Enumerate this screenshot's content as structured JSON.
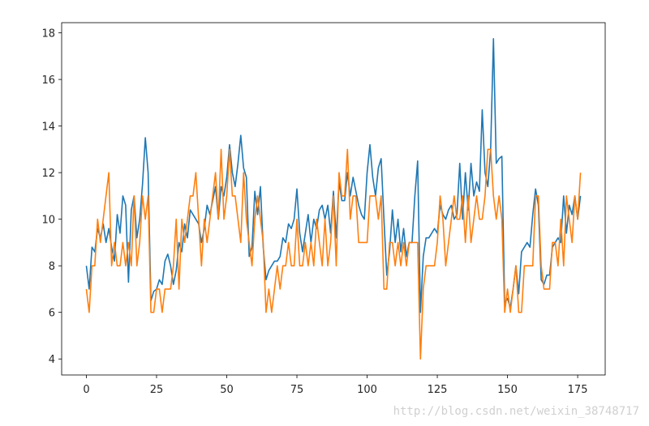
{
  "chart_data": {
    "type": "line",
    "x": [
      0,
      1,
      2,
      3,
      4,
      5,
      6,
      7,
      8,
      9,
      10,
      11,
      12,
      13,
      14,
      15,
      16,
      17,
      18,
      19,
      20,
      21,
      22,
      23,
      24,
      25,
      26,
      27,
      28,
      29,
      30,
      31,
      32,
      33,
      34,
      35,
      36,
      37,
      38,
      39,
      40,
      41,
      42,
      43,
      44,
      45,
      46,
      47,
      48,
      49,
      50,
      51,
      52,
      53,
      54,
      55,
      56,
      57,
      58,
      59,
      60,
      61,
      62,
      63,
      64,
      65,
      66,
      67,
      68,
      69,
      70,
      71,
      72,
      73,
      74,
      75,
      76,
      77,
      78,
      79,
      80,
      81,
      82,
      83,
      84,
      85,
      86,
      87,
      88,
      89,
      90,
      91,
      92,
      93,
      94,
      95,
      96,
      97,
      98,
      99,
      100,
      101,
      102,
      103,
      104,
      105,
      106,
      107,
      108,
      109,
      110,
      111,
      112,
      113,
      114,
      115,
      116,
      117,
      118,
      119,
      120,
      121,
      122,
      123,
      124,
      125,
      126,
      127,
      128,
      129,
      130,
      131,
      132,
      133,
      134,
      135,
      136,
      137,
      138,
      139,
      140,
      141,
      142,
      143,
      144,
      145,
      146,
      147,
      148,
      149,
      150,
      151,
      152,
      153,
      154,
      155,
      156,
      157,
      158,
      159,
      160,
      161,
      162,
      163,
      164,
      165,
      166,
      167,
      168,
      169,
      170,
      171,
      172,
      173,
      174,
      175,
      176
    ],
    "series": [
      {
        "color": "#1f77b4",
        "values": [
          8.0,
          7.0,
          8.8,
          8.6,
          9.6,
          9.2,
          9.8,
          9.0,
          9.6,
          8.8,
          8.2,
          10.2,
          9.4,
          11.0,
          10.6,
          7.3,
          10.4,
          11.0,
          9.2,
          10.0,
          11.5,
          13.5,
          12.0,
          6.5,
          6.9,
          7.0,
          7.4,
          7.2,
          8.2,
          8.5,
          8.0,
          7.2,
          7.8,
          9.0,
          8.6,
          9.8,
          9.2,
          10.4,
          10.2,
          10.0,
          9.8,
          9.0,
          9.6,
          10.6,
          10.2,
          10.8,
          11.4,
          10.0,
          11.4,
          11.0,
          11.8,
          13.2,
          12.0,
          11.4,
          12.4,
          13.6,
          12.2,
          11.8,
          8.4,
          8.8,
          11.2,
          10.2,
          11.4,
          8.8,
          7.4,
          7.8,
          8.0,
          8.2,
          8.2,
          8.4,
          9.2,
          9.0,
          9.8,
          9.6,
          10.0,
          11.3,
          9.4,
          8.6,
          9.4,
          10.2,
          9.0,
          10.0,
          9.6,
          10.4,
          10.6,
          10.0,
          10.6,
          9.4,
          11.2,
          9.2,
          11.6,
          10.8,
          10.8,
          12.0,
          11.0,
          11.8,
          11.2,
          10.6,
          10.2,
          10.0,
          12.0,
          13.2,
          11.8,
          11.0,
          12.2,
          12.6,
          10.0,
          7.6,
          8.6,
          10.4,
          9.0,
          10.0,
          8.6,
          9.6,
          8.4,
          9.0,
          9.0,
          11.0,
          12.5,
          6.0,
          8.4,
          9.2,
          9.2,
          9.4,
          9.6,
          9.4,
          10.6,
          10.2,
          10.0,
          10.4,
          10.6,
          10.0,
          10.2,
          12.4,
          10.0,
          12.0,
          10.4,
          12.4,
          11.0,
          11.6,
          11.2,
          14.7,
          12.0,
          11.4,
          13.0,
          17.75,
          12.4,
          12.6,
          12.7,
          6.4,
          6.6,
          6.2,
          7.0,
          8.0,
          6.8,
          8.6,
          8.8,
          9.0,
          8.8,
          10.2,
          11.3,
          10.6,
          7.4,
          7.2,
          7.6,
          7.6,
          8.8,
          9.0,
          9.2,
          9.0,
          11.0,
          9.4,
          10.6,
          10.2,
          11.0,
          10.0,
          11.0
        ]
      },
      {
        "color": "#ff7f0e",
        "values": [
          7,
          6,
          8,
          8,
          10,
          9,
          10,
          11,
          12,
          8,
          9,
          8,
          8,
          9,
          8,
          9,
          8,
          11,
          8,
          9,
          11,
          10,
          11,
          6,
          6,
          7,
          7,
          6,
          7,
          7,
          7,
          8,
          10,
          7,
          10,
          9,
          10,
          11,
          11,
          12,
          10,
          8,
          10,
          9,
          10,
          11,
          12,
          10,
          13,
          10,
          11,
          13,
          11,
          11,
          10,
          9,
          12,
          10,
          9,
          8,
          10,
          11,
          10,
          9,
          6,
          7,
          6,
          7,
          8,
          7,
          8,
          8,
          9,
          8,
          8,
          10,
          8,
          8,
          9,
          8,
          9,
          8,
          10,
          9,
          8,
          10,
          8,
          9,
          11,
          8,
          12,
          11,
          11,
          13,
          10,
          11,
          11,
          9,
          9,
          9,
          9,
          11,
          11,
          11,
          10,
          11,
          7,
          7,
          9,
          9,
          8,
          9,
          8,
          9,
          8,
          9,
          9,
          9,
          9,
          4,
          7,
          8,
          8,
          8,
          8,
          9,
          11,
          10,
          8,
          9,
          10,
          11,
          10,
          10,
          11,
          9,
          11,
          9,
          10,
          11,
          10,
          10,
          11,
          13,
          13,
          11,
          10,
          11,
          10,
          6,
          7,
          6,
          7,
          8,
          6,
          6,
          8,
          8,
          8,
          8,
          11,
          11,
          8,
          7,
          7,
          7,
          9,
          9,
          8,
          10,
          8,
          11,
          10,
          9,
          11,
          10,
          12
        ]
      }
    ],
    "xlim": [
      -8.8,
      184.8
    ],
    "xticks": [
      0,
      25,
      50,
      75,
      100,
      125,
      150,
      175
    ],
    "ylim": [
      3.3125,
      18.4375
    ],
    "yticks": [
      4,
      6,
      8,
      10,
      12,
      14,
      16,
      18
    ],
    "grid": false
  },
  "watermark": "http://blog.csdn.net/weixin_38748717"
}
